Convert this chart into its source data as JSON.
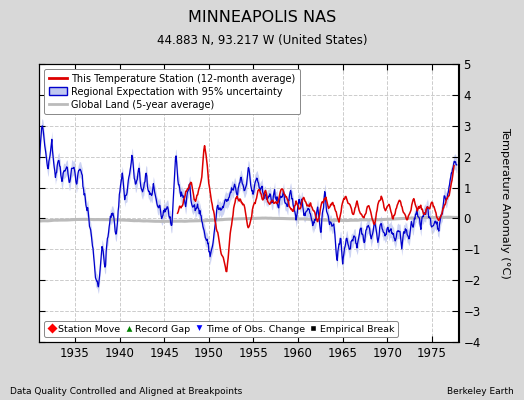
{
  "title": "MINNEAPOLIS NAS",
  "subtitle": "44.883 N, 93.217 W (United States)",
  "ylabel": "Temperature Anomaly (°C)",
  "xlabel_left": "Data Quality Controlled and Aligned at Breakpoints",
  "xlabel_right": "Berkeley Earth",
  "ylim": [
    -4,
    5
  ],
  "yticks": [
    -4,
    -3,
    -2,
    -1,
    0,
    1,
    2,
    3,
    4,
    5
  ],
  "xlim": [
    1931,
    1978
  ],
  "xticks": [
    1935,
    1940,
    1945,
    1950,
    1955,
    1960,
    1965,
    1970,
    1975
  ],
  "outer_bg": "#d8d8d8",
  "plot_bg": "#ffffff",
  "grid_color": "#cccccc",
  "legend1_labels": [
    "This Temperature Station (12-month average)",
    "Regional Expectation with 95% uncertainty",
    "Global Land (5-year average)"
  ],
  "legend2_labels": [
    "Station Move",
    "Record Gap",
    "Time of Obs. Change",
    "Empirical Break"
  ],
  "red_color": "#dd0000",
  "blue_color": "#0000cc",
  "blue_fill_color": "#c0c8f0",
  "gray_color": "#bbbbbb",
  "seed": 42
}
